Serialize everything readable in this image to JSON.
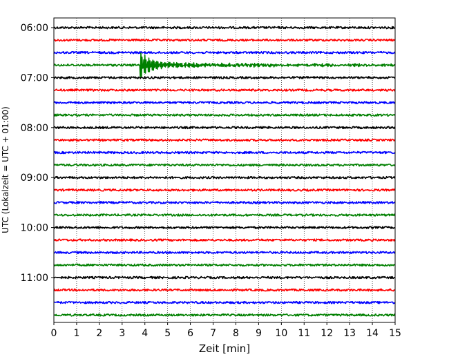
{
  "chart_data": {
    "type": "line",
    "title": "",
    "xlabel": "Zeit  [min]",
    "ylabel": "UTC (Lokalzeit = UTC + 01:00)",
    "xlim": [
      0,
      15
    ],
    "x_ticks": [
      "0",
      "1",
      "2",
      "3",
      "4",
      "5",
      "6",
      "7",
      "8",
      "9",
      "10",
      "11",
      "12",
      "13",
      "14",
      "15"
    ],
    "y_tick_labels": [
      "06:00",
      "07:00",
      "08:00",
      "09:00",
      "10:00",
      "11:00"
    ],
    "grid": "vertical dotted",
    "trace_interval_minutes": 15,
    "colors": [
      "#000000",
      "#ff0000",
      "#0000ff",
      "#008000"
    ],
    "traces": [
      {
        "start": "06:00",
        "color": "#000000"
      },
      {
        "start": "06:15",
        "color": "#ff0000"
      },
      {
        "start": "06:30",
        "color": "#0000ff"
      },
      {
        "start": "06:45",
        "color": "#008000",
        "event": {
          "onset_min": 3.8,
          "peak_amplitude": "large",
          "coda_until_min": 15
        }
      },
      {
        "start": "07:00",
        "color": "#000000"
      },
      {
        "start": "07:15",
        "color": "#ff0000"
      },
      {
        "start": "07:30",
        "color": "#0000ff"
      },
      {
        "start": "07:45",
        "color": "#008000"
      },
      {
        "start": "08:00",
        "color": "#000000"
      },
      {
        "start": "08:15",
        "color": "#ff0000"
      },
      {
        "start": "08:30",
        "color": "#0000ff"
      },
      {
        "start": "08:45",
        "color": "#008000"
      },
      {
        "start": "09:00",
        "color": "#000000"
      },
      {
        "start": "09:15",
        "color": "#ff0000"
      },
      {
        "start": "09:30",
        "color": "#0000ff"
      },
      {
        "start": "09:45",
        "color": "#008000"
      },
      {
        "start": "10:00",
        "color": "#000000"
      },
      {
        "start": "10:15",
        "color": "#ff0000"
      },
      {
        "start": "10:30",
        "color": "#0000ff"
      },
      {
        "start": "10:45",
        "color": "#008000"
      },
      {
        "start": "11:00",
        "color": "#000000"
      },
      {
        "start": "11:15",
        "color": "#ff0000"
      },
      {
        "start": "11:30",
        "color": "#0000ff"
      },
      {
        "start": "11:45",
        "color": "#008000"
      }
    ]
  }
}
